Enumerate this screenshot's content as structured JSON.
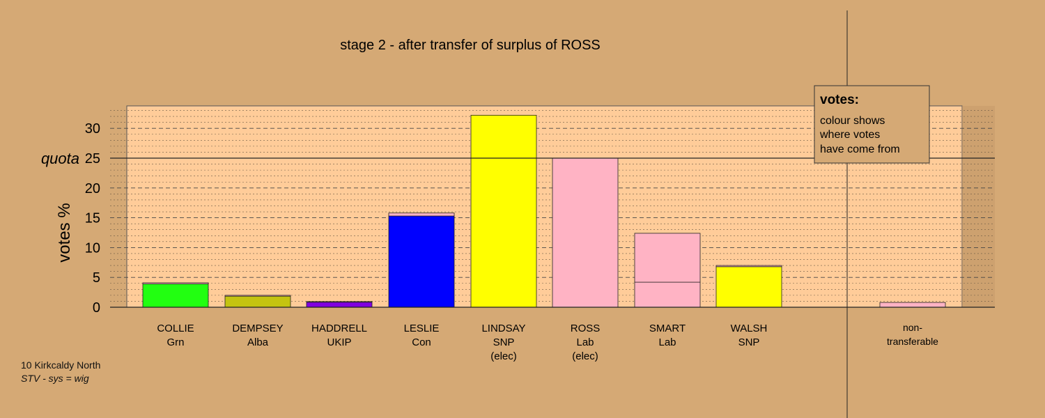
{
  "chart_data": {
    "type": "bar",
    "title": "stage 2 - after transfer of surplus of ROSS",
    "ylabel": "votes %",
    "ylim": [
      0,
      33
    ],
    "yticks": [
      0,
      5,
      10,
      15,
      20,
      25,
      30
    ],
    "quota": {
      "label": "quota",
      "value": 25
    },
    "candidates": [
      {
        "name": "COLLIE",
        "party": "Grn",
        "status": "",
        "segments": [
          {
            "value": 3.9,
            "color": "#22FF11"
          },
          {
            "value": 0.2,
            "color": "#FFB3C4"
          }
        ]
      },
      {
        "name": "DEMPSEY",
        "party": "Alba",
        "status": "",
        "segments": [
          {
            "value": 1.85,
            "color": "#C4C410"
          },
          {
            "value": 0.15,
            "color": "#FFB3C4"
          }
        ]
      },
      {
        "name": "HADDRELL",
        "party": "UKIP",
        "status": "",
        "segments": [
          {
            "value": 0.85,
            "color": "#8000E0"
          },
          {
            "value": 0.1,
            "color": "#FFB3C4"
          }
        ]
      },
      {
        "name": "LESLIE",
        "party": "Con",
        "status": "",
        "segments": [
          {
            "value": 15.3,
            "color": "#0000FF"
          },
          {
            "value": 0.5,
            "color": "#FFB3C4"
          }
        ]
      },
      {
        "name": "LINDSAY",
        "party": "SNP",
        "status": "(elec)",
        "segments": [
          {
            "value": 32.2,
            "color": "#FFFF00"
          }
        ]
      },
      {
        "name": "ROSS",
        "party": "Lab",
        "status": "(elec)",
        "segments": [
          {
            "value": 25.0,
            "color": "#FFB3C4"
          }
        ]
      },
      {
        "name": "SMART",
        "party": "Lab",
        "status": "",
        "segments": [
          {
            "value": 4.2,
            "color": "#FFB3C4"
          },
          {
            "value": 8.2,
            "color": "#FFB3C4"
          }
        ]
      },
      {
        "name": "WALSH",
        "party": "SNP",
        "status": "",
        "segments": [
          {
            "value": 6.8,
            "color": "#FFFF00"
          },
          {
            "value": 0.2,
            "color": "#FFB3C4"
          }
        ]
      }
    ],
    "non_transferable": {
      "label": [
        "non-",
        "transferable"
      ],
      "value": 0.8,
      "color": "#FFB3C4"
    },
    "legend": {
      "title": "votes:",
      "lines": [
        "colour shows",
        "where votes",
        "have come from"
      ]
    }
  },
  "footer": {
    "line1": "10 Kirkcaldy North",
    "line2": "STV - sys = wig"
  },
  "colors": {
    "background": "#D5A975",
    "plot_area": "#FFCC99"
  }
}
